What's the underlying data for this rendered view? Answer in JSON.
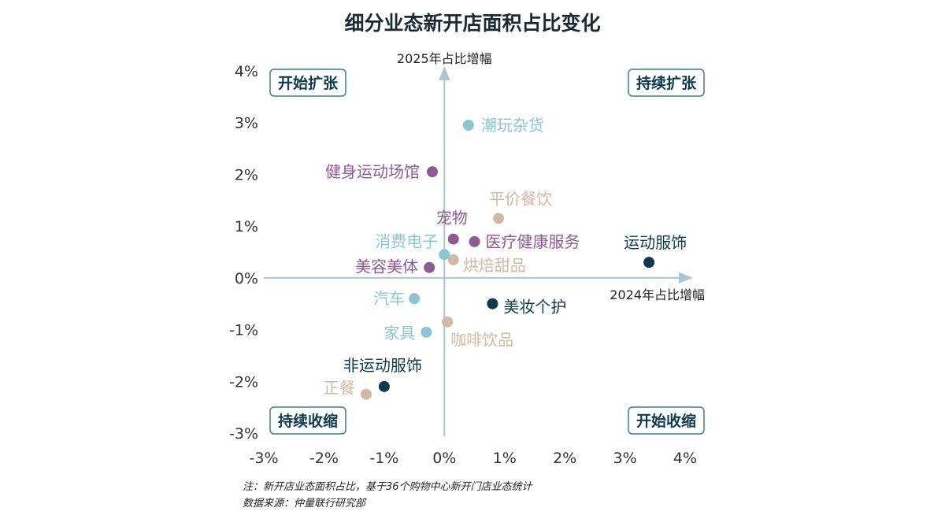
{
  "chart_data": {
    "type": "scatter",
    "title": "细分业态新开店面积占比变化",
    "xlabel": "2024年占比增幅",
    "ylabel": "2025年占比增幅",
    "xlim": [
      -3,
      4
    ],
    "ylim": [
      -3,
      4
    ],
    "x_ticks": [
      "-3%",
      "-2%",
      "-1%",
      "0%",
      "1%",
      "2%",
      "3%",
      "4%"
    ],
    "y_ticks": [
      "4%",
      "3%",
      "2%",
      "1%",
      "0%",
      "-1%",
      "-2%",
      "-3%"
    ],
    "quadrants": {
      "top_left": "开始扩张",
      "top_right": "持续扩张",
      "bottom_left": "持续收缩",
      "bottom_right": "开始收缩"
    },
    "colors": {
      "dark": "#0f3a4c",
      "purple": "#8e5a93",
      "light_blue": "#8ec5d3",
      "beige": "#d2b9a5",
      "axis": "#aac6d3",
      "box_border": "#3f7f91"
    },
    "points": [
      {
        "label": "潮玩杂货",
        "x": 0.4,
        "y": 2.95,
        "group": "light_blue"
      },
      {
        "label": "健身运动场馆",
        "x": -0.2,
        "y": 2.05,
        "group": "purple"
      },
      {
        "label": "平价餐饮",
        "x": 0.9,
        "y": 1.15,
        "group": "beige"
      },
      {
        "label": "宠物",
        "x": 0.15,
        "y": 0.75,
        "group": "purple"
      },
      {
        "label": "医疗健康服务",
        "x": 0.5,
        "y": 0.7,
        "group": "purple"
      },
      {
        "label": "消费电子",
        "x": 0.0,
        "y": 0.45,
        "group": "light_blue"
      },
      {
        "label": "烘焙甜品",
        "x": 0.15,
        "y": 0.35,
        "group": "beige"
      },
      {
        "label": "美容美体",
        "x": -0.25,
        "y": 0.2,
        "group": "purple"
      },
      {
        "label": "运动服饰",
        "x": 3.4,
        "y": 0.3,
        "group": "dark"
      },
      {
        "label": "汽车",
        "x": -0.5,
        "y": -0.4,
        "group": "light_blue"
      },
      {
        "label": "美妆个护",
        "x": 0.8,
        "y": -0.5,
        "group": "dark"
      },
      {
        "label": "咖啡饮品",
        "x": 0.05,
        "y": -0.85,
        "group": "beige"
      },
      {
        "label": "家具",
        "x": -0.3,
        "y": -1.05,
        "group": "light_blue"
      },
      {
        "label": "非运动服饰",
        "x": -1.0,
        "y": -2.1,
        "group": "dark"
      },
      {
        "label": "正餐",
        "x": -1.3,
        "y": -2.25,
        "group": "beige"
      }
    ]
  },
  "footnotes": {
    "note": "注：新开店业态面积占比，基于36个购物中心新开门店业态统计",
    "source": "数据来源：仲量联行研究部"
  }
}
